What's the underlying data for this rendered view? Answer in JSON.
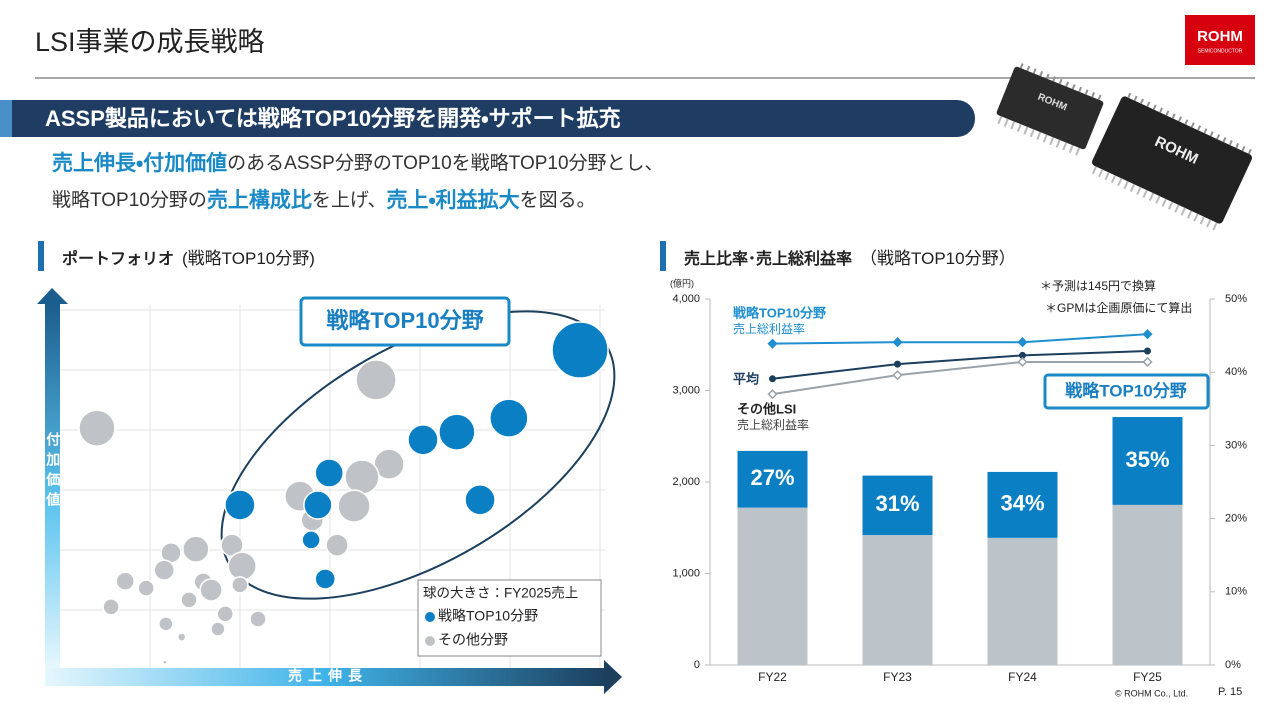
{
  "header": {
    "title": "LSI事業の成長戦略",
    "logo": {
      "name": "ROHM",
      "sub": "SEMICONDUCTOR"
    }
  },
  "banner": "ASSP製品においては戦略TOP10分野を開発・サポート拡充",
  "intro": {
    "lines": [
      {
        "segments": [
          {
            "text": "売上伸長・付加価値",
            "emphasis": true
          },
          {
            "text": "のあるASSP分野のTOP10を戦略TOP10分野とし、",
            "emphasis": false
          }
        ]
      },
      {
        "segments": [
          {
            "text": "戦略TOP10分野の",
            "emphasis": false
          },
          {
            "text": "売上構成比",
            "emphasis": true
          },
          {
            "text": "を上げ、",
            "emphasis": false
          },
          {
            "text": "売上・利益拡大",
            "emphasis": true
          },
          {
            "text": "を図る。",
            "emphasis": false
          }
        ]
      }
    ]
  },
  "sections": [
    {
      "title": "ポートフォリオ",
      "subtitle": "(戦略TOP10分野)"
    },
    {
      "title": "売上比率･売上総利益率",
      "subtitle": "（戦略TOP10分野）"
    }
  ],
  "chart_data": [
    {
      "type": "bubble",
      "x_label": "売上伸長",
      "y_label": "付加価値",
      "annotation": "戦略TOP10分野",
      "legend_title": "球の大きさ：FY2025売上",
      "xlim": [
        0,
        100
      ],
      "ylim": [
        0,
        100
      ],
      "series": [
        {
          "name": "戦略TOP10分野",
          "color": "#0a7fc4",
          "x": [
            94.7,
            82.1,
            72.9,
            66.9,
            77.0,
            50.3,
            34.5,
            48.3,
            47.1,
            49.6
          ],
          "values": [
            86.4,
            67.9,
            64.1,
            62.0,
            45.7,
            53.0,
            44.3,
            44.3,
            34.8,
            24.2
          ],
          "sizes": [
            28,
            19,
            18,
            15,
            15,
            14,
            15,
            14,
            9,
            10
          ]
        },
        {
          "name": "その他分野",
          "color": "#bfc3c7",
          "x": [
            9.2,
            58.6,
            60.9,
            56.1,
            45.1,
            54.7,
            47.3,
            51.7,
            26.7,
            22.3,
            33.1,
            34.9,
            21.1,
            14.2,
            17.9,
            28.0,
            29.4,
            34.5,
            25.5,
            31.9,
            37.7,
            11.7,
            21.4,
            30.6,
            24.2,
            21.2
          ],
          "values": [
            65.2,
            78.3,
            55.4,
            51.9,
            46.7,
            44.0,
            40.2,
            33.4,
            32.3,
            31.3,
            33.4,
            27.7,
            26.6,
            23.6,
            21.7,
            23.4,
            21.2,
            22.6,
            18.5,
            14.7,
            13.3,
            16.6,
            12.0,
            10.6,
            8.4,
            1.6
          ],
          "sizes": [
            18,
            20,
            15,
            17,
            15,
            16,
            11,
            11,
            13,
            10,
            11,
            14,
            10,
            9,
            8,
            9,
            11,
            8,
            8,
            8,
            8,
            8,
            7,
            7,
            4,
            2
          ]
        }
      ]
    },
    {
      "type": "bar",
      "stacked": true,
      "categories": [
        "FY22",
        "FY23",
        "FY24",
        "FY25"
      ],
      "y_unit": "(億円)",
      "ylim": [
        0,
        4000
      ],
      "yticks": [
        0,
        {
          "value": 1000,
          "label": "1,000"
        },
        {
          "value": 2000,
          "label": "2,000"
        },
        {
          "value": 3000,
          "label": "3,000"
        },
        {
          "value": 4000,
          "label": "4,000"
        }
      ],
      "y2lim": [
        0,
        50
      ],
      "y2ticks": [
        {
          "value": 0,
          "label": "0%"
        },
        {
          "value": 10,
          "label": "10%"
        },
        {
          "value": 20,
          "label": "20%"
        },
        {
          "value": 30,
          "label": "30%"
        },
        {
          "value": 40,
          "label": "40%"
        },
        {
          "value": 50,
          "label": "50%"
        }
      ],
      "annotation": "戦略TOP10分野",
      "notes": [
        "＊予測は145円で換算",
        "＊GPMは企画原価にて算出"
      ],
      "series": [
        {
          "color": "#bcc4ca",
          "values": [
            1720,
            1420,
            1390,
            1750
          ]
        },
        {
          "name": "戦略TOP10分野",
          "color": "#0a7fc4",
          "values": [
            620,
            650,
            720,
            960
          ],
          "shares": {
            "values": [
              27,
              31,
              34,
              35
            ],
            "value_labels": [
              "27%",
              "31%",
              "34%",
              "35%"
            ]
          }
        },
        {
          "name": "戦略TOP10分野",
          "label": "売上総利益率",
          "type": "line",
          "axis": "y2",
          "color": "#1f8fd0",
          "marker": "diamond",
          "values": [
            43.9,
            44.1,
            44.1,
            45.2
          ]
        },
        {
          "name": "平均",
          "type": "line",
          "axis": "y2",
          "color": "#1c3f5e",
          "marker": "circle",
          "values": [
            39.1,
            41.1,
            42.3,
            42.9
          ]
        },
        {
          "name": "その他LSI",
          "label": "売上総利益率",
          "type": "line",
          "axis": "y2",
          "color": "#9aa3a9",
          "marker": "diamond",
          "values": [
            37.0,
            39.6,
            41.4,
            41.4
          ]
        }
      ]
    }
  ],
  "footer": {
    "copyright": "© ROHM Co., Ltd.",
    "page": "P. 15"
  }
}
